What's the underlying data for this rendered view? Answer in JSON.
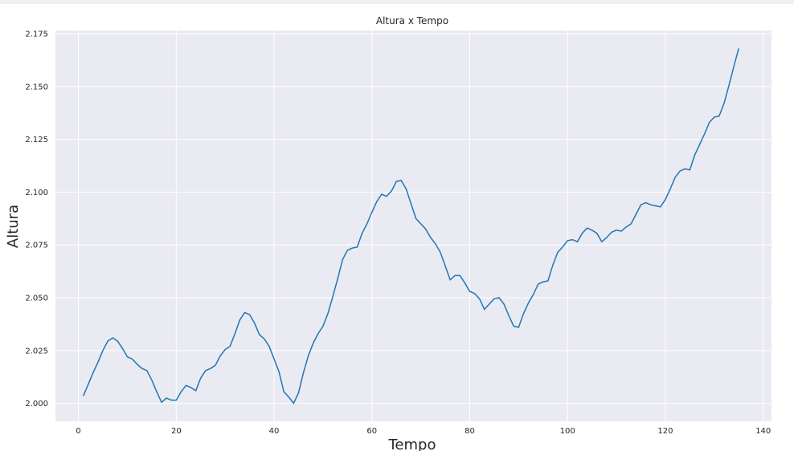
{
  "chart_data": {
    "type": "line",
    "title": "Altura x Tempo",
    "xlabel": "Tempo",
    "ylabel": "Altura",
    "xlim": [
      -4.7,
      141.7
    ],
    "ylim": [
      1.9915,
      2.1765
    ],
    "xticks": [
      0,
      20,
      40,
      60,
      80,
      100,
      120,
      140
    ],
    "xtick_labels": [
      "0",
      "20",
      "40",
      "60",
      "80",
      "100",
      "120",
      "140"
    ],
    "yticks": [
      2.0,
      2.025,
      2.05,
      2.075,
      2.1,
      2.125,
      2.15,
      2.175
    ],
    "ytick_labels": [
      "2.000",
      "2.025",
      "2.050",
      "2.075",
      "2.100",
      "2.125",
      "2.150",
      "2.175"
    ],
    "grid": true,
    "line_color": "#1f77b4",
    "background_color": "#eaeaf2",
    "series": [
      {
        "x": [
          1,
          2,
          3,
          4,
          5,
          6,
          7,
          8,
          9,
          10,
          11,
          12,
          13,
          14,
          15,
          16,
          17,
          18,
          19,
          20,
          21,
          22,
          23,
          24,
          25,
          26,
          27,
          28,
          29,
          30,
          31,
          32,
          33,
          34,
          35,
          36,
          37,
          38,
          39,
          40,
          41,
          42,
          43,
          44,
          45,
          46,
          47,
          48,
          49,
          50,
          51,
          52,
          53,
          54,
          55,
          56,
          57,
          58,
          59,
          60,
          61,
          62,
          63,
          64,
          65,
          66,
          67,
          68,
          69,
          70,
          71,
          72,
          73,
          74,
          75,
          76,
          77,
          78,
          79,
          80,
          81,
          82,
          83,
          84,
          85,
          86,
          87,
          88,
          89,
          90,
          91,
          92,
          93,
          94,
          95,
          96,
          97,
          98,
          99,
          100,
          101,
          102,
          103,
          104,
          105,
          106,
          107,
          108,
          109,
          110,
          111,
          112,
          113,
          114,
          115,
          116,
          117,
          118,
          119,
          120,
          121,
          122,
          123,
          124,
          125,
          126,
          127,
          128,
          129,
          130,
          131,
          132,
          133,
          134,
          135
        ],
        "y": [
          2.0035,
          2.009,
          2.0145,
          2.0195,
          2.025,
          2.0295,
          2.031,
          2.0295,
          2.026,
          2.022,
          2.021,
          2.0185,
          2.0165,
          2.0155,
          2.011,
          2.0055,
          2.0005,
          2.0025,
          2.0015,
          2.0015,
          2.0055,
          2.0085,
          2.0075,
          2.006,
          2.012,
          2.0155,
          2.0165,
          2.018,
          2.0225,
          2.0255,
          2.027,
          2.033,
          2.0395,
          2.043,
          2.042,
          2.038,
          2.0325,
          2.0305,
          2.027,
          2.021,
          2.015,
          2.0055,
          2.003,
          2.0,
          2.005,
          2.0145,
          2.0225,
          2.0285,
          2.033,
          2.0365,
          2.0425,
          2.0505,
          2.059,
          2.068,
          2.0725,
          2.0735,
          2.074,
          2.0805,
          2.085,
          2.0905,
          2.0955,
          2.099,
          2.098,
          2.1005,
          2.105,
          2.1055,
          2.1015,
          2.0945,
          2.0875,
          2.085,
          2.0825,
          2.0785,
          2.0755,
          2.0715,
          2.065,
          2.0585,
          2.0605,
          2.0605,
          2.057,
          2.053,
          2.052,
          2.0495,
          2.0445,
          2.047,
          2.0495,
          2.05,
          2.047,
          2.0415,
          2.0365,
          2.036,
          2.0425,
          2.0475,
          2.0515,
          2.0565,
          2.0575,
          2.058,
          2.0655,
          2.0715,
          2.074,
          2.077,
          2.0775,
          2.0765,
          2.0805,
          2.083,
          2.082,
          2.0805,
          2.0765,
          2.0785,
          2.081,
          2.082,
          2.0815,
          2.0835,
          2.085,
          2.0895,
          2.094,
          2.095,
          2.094,
          2.0935,
          2.093,
          2.0965,
          2.1015,
          2.107,
          2.11,
          2.111,
          2.1105,
          2.1175,
          2.1225,
          2.1275,
          2.133,
          2.1355,
          2.136,
          2.142,
          2.1505,
          2.1595,
          2.168
        ]
      }
    ]
  }
}
